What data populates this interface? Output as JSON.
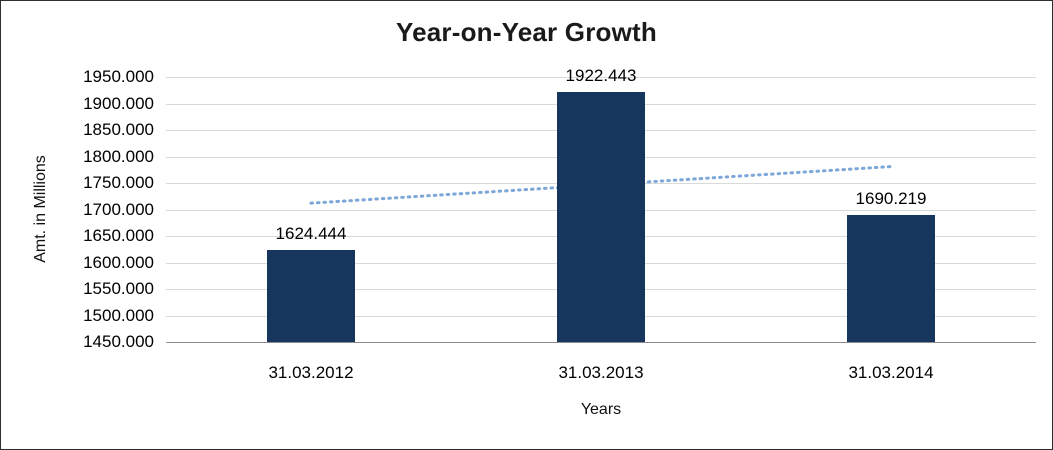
{
  "chart_data": {
    "type": "bar",
    "title": "Year-on-Year Growth",
    "xlabel": "Years",
    "ylabel": "Amt. in Millions",
    "categories": [
      "31.03.2012",
      "31.03.2013",
      "31.03.2014"
    ],
    "values": [
      1624.444,
      1922.443,
      1690.219
    ],
    "data_labels": [
      "1624.444",
      "1922.443",
      "1690.219"
    ],
    "ylim": [
      1450,
      1950
    ],
    "y_tick_step": 50,
    "y_tick_labels": [
      "1450.000",
      "1500.000",
      "1550.000",
      "1600.000",
      "1650.000",
      "1700.000",
      "1750.000",
      "1800.000",
      "1850.000",
      "1900.000",
      "1950.000"
    ],
    "grid": true,
    "legend": "none",
    "trendline": {
      "type": "linear",
      "style": "dotted",
      "start_value": 1712,
      "end_value": 1781
    },
    "colors": {
      "bar": "#17365D",
      "trendline": "#7DA7D8",
      "gridline": "#D9D9D9",
      "axis_line": "#8C8C8C",
      "text": "#000000",
      "background": "#FFFFFF",
      "border": "#2E2E2E"
    }
  }
}
